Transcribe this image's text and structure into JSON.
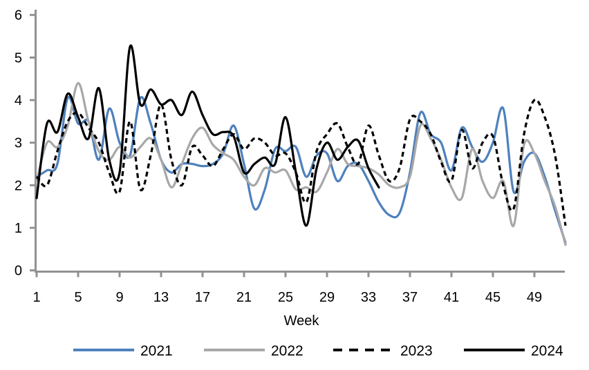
{
  "chart_data": {
    "type": "line",
    "title": "",
    "xlabel": "Week",
    "ylabel": "",
    "grid": false,
    "legend_position": "bottom",
    "axis_color": "#919191",
    "text_color": "#000000",
    "x_axis": {
      "min": 1,
      "max": 53,
      "tick_labels": [
        1,
        5,
        9,
        13,
        17,
        21,
        25,
        29,
        33,
        37,
        41,
        45,
        49
      ]
    },
    "y_axis": {
      "min": 0,
      "max": 6,
      "tick_labels": [
        0,
        1,
        2,
        3,
        4,
        5,
        6
      ]
    },
    "x_values_note": "weekly data, week 1 through week 52 (2024 partial year ends week 34)",
    "series": [
      {
        "name": "2021",
        "color": "#4f81bd",
        "dash": null,
        "start_week": 1,
        "values": [
          2.2,
          2.35,
          2.5,
          4.05,
          3.45,
          3.5,
          2.6,
          3.8,
          3.0,
          2.7,
          4.05,
          3.45,
          2.6,
          2.3,
          2.5,
          2.5,
          2.45,
          2.5,
          2.75,
          3.4,
          2.5,
          1.45,
          1.9,
          2.85,
          2.8,
          2.9,
          2.2,
          2.7,
          2.75,
          2.1,
          2.45,
          2.5,
          2.1,
          1.6,
          1.3,
          1.35,
          2.3,
          3.7,
          3.2,
          3.0,
          2.35,
          3.35,
          2.9,
          2.55,
          3.0,
          3.8,
          1.85,
          2.55,
          2.75,
          2.2,
          1.4,
          0.65
        ]
      },
      {
        "name": "2022",
        "color": "#a8a8a8",
        "dash": null,
        "start_week": 1,
        "values": [
          2.1,
          3.0,
          2.9,
          3.4,
          4.4,
          3.5,
          2.8,
          2.6,
          2.9,
          2.65,
          2.9,
          3.1,
          2.6,
          1.95,
          2.5,
          3.1,
          3.35,
          2.95,
          2.75,
          2.6,
          2.2,
          2.0,
          2.4,
          2.3,
          2.35,
          1.9,
          1.95,
          1.85,
          2.3,
          2.85,
          2.5,
          2.45,
          2.4,
          2.25,
          2.0,
          1.95,
          2.2,
          3.4,
          3.1,
          2.6,
          1.95,
          1.7,
          2.85,
          2.1,
          1.7,
          2.1,
          1.05,
          2.95,
          2.75,
          2.1,
          1.5,
          0.6
        ]
      },
      {
        "name": "2023",
        "color": "#000000",
        "dash": "7 5",
        "start_week": 1,
        "values": [
          2.2,
          2.0,
          2.8,
          3.5,
          3.7,
          3.35,
          3.0,
          2.3,
          1.85,
          3.5,
          1.9,
          2.7,
          3.9,
          2.6,
          2.0,
          2.9,
          2.7,
          2.45,
          2.85,
          3.2,
          2.85,
          3.1,
          3.0,
          2.7,
          2.75,
          2.3,
          1.6,
          2.8,
          3.2,
          3.45,
          2.9,
          2.5,
          3.4,
          2.7,
          2.1,
          2.4,
          3.55,
          3.5,
          3.2,
          2.55,
          2.1,
          3.3,
          2.4,
          3.0,
          3.15,
          2.0,
          1.45,
          3.2,
          4.0,
          3.6,
          2.7,
          1.05
        ]
      },
      {
        "name": "2024",
        "color": "#000000",
        "dash": null,
        "start_week": 1,
        "values": [
          1.7,
          3.45,
          3.25,
          4.15,
          3.6,
          3.1,
          4.28,
          2.6,
          2.3,
          5.25,
          3.9,
          4.25,
          3.9,
          4.0,
          3.65,
          4.2,
          3.65,
          3.2,
          3.25,
          3.15,
          2.3,
          2.5,
          2.65,
          2.5,
          3.6,
          2.3,
          1.05,
          2.4,
          3.0,
          2.6,
          2.9,
          3.05,
          2.4,
          1.95
        ]
      }
    ],
    "legend": {
      "labels": [
        "2021",
        "2022",
        "2023",
        "2024"
      ]
    }
  }
}
